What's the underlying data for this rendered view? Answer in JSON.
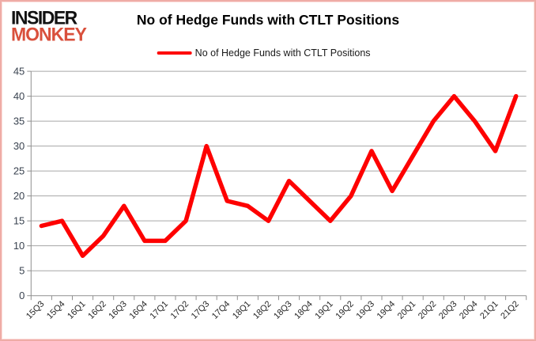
{
  "logo": {
    "line1": "INSIDER",
    "line2": "MONKEY"
  },
  "title": "No of Hedge Funds with CTLT Positions",
  "legend": {
    "label": "No of Hedge Funds with CTLT Positions"
  },
  "chart_data": {
    "type": "line",
    "title": "No of Hedge Funds with CTLT Positions",
    "categories": [
      "15Q3",
      "15Q4",
      "16Q1",
      "16Q2",
      "16Q3",
      "16Q4",
      "17Q1",
      "17Q2",
      "17Q3",
      "17Q4",
      "18Q1",
      "18Q2",
      "18Q3",
      "18Q4",
      "19Q1",
      "19Q2",
      "19Q3",
      "19Q4",
      "20Q1",
      "20Q2",
      "20Q3",
      "20Q4",
      "21Q1",
      "21Q2"
    ],
    "series": [
      {
        "name": "No of Hedge Funds with CTLT Positions",
        "color": "#fe0000",
        "values": [
          14,
          15,
          8,
          12,
          18,
          11,
          11,
          15,
          30,
          19,
          18,
          15,
          23,
          19,
          15,
          20,
          29,
          21,
          28,
          35,
          40,
          35,
          29,
          40
        ]
      }
    ],
    "xlabel": "",
    "ylabel": "",
    "ylim": [
      0,
      45
    ],
    "ytick_step": 5,
    "grid": true,
    "legend_position": "top",
    "colors": {
      "series": "#fe0000",
      "gridline": "#a6a6a6",
      "axis_line": "#8f8f8f",
      "y_tick_label": "#3a4350",
      "x_tick_label": "#262626",
      "title": "#000000",
      "logo_primary": "#121212",
      "logo_accent": "#d9503c",
      "frame_border": "#efaca6"
    }
  }
}
